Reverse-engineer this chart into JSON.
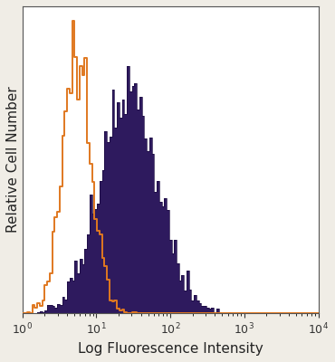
{
  "title": "",
  "xlabel": "Log Fluorescence Intensity",
  "ylabel": "Relative Cell Number",
  "xlim": [
    1,
    10000
  ],
  "ylim": [
    0,
    1.05
  ],
  "background_color": "#f0ede6",
  "plot_bg_color": "#ffffff",
  "orange_color": "#e07820",
  "purple_color": "#2e1a5e",
  "purple_edge_color": "#1a0a40",
  "orange_peak_log": 0.74,
  "orange_sigma": 0.2,
  "purple_peak_log": 1.45,
  "purple_sigma": 0.38,
  "n_bins": 120,
  "font_size": 11,
  "tick_font_size": 9
}
